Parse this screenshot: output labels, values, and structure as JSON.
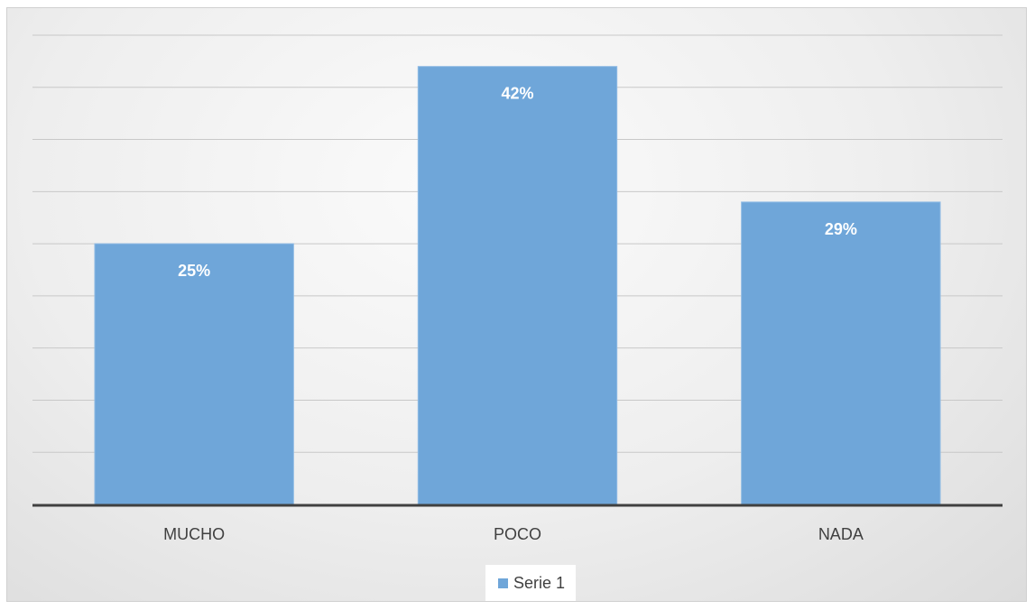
{
  "chart_data": {
    "type": "bar",
    "categories": [
      "MUCHO",
      "POCO",
      "NADA"
    ],
    "series": [
      {
        "name": "Serie 1",
        "values": [
          25,
          42,
          29
        ],
        "labels": [
          "25%",
          "42%",
          "29%"
        ]
      }
    ],
    "ylim": [
      0,
      45
    ],
    "grid": true,
    "legend_position": "bottom",
    "colors": {
      "bar": "#6fa6d9",
      "gridline": "#c8c8c8",
      "axis": "#404040",
      "data_label": "#ffffff",
      "tick_label": "#404040"
    }
  }
}
